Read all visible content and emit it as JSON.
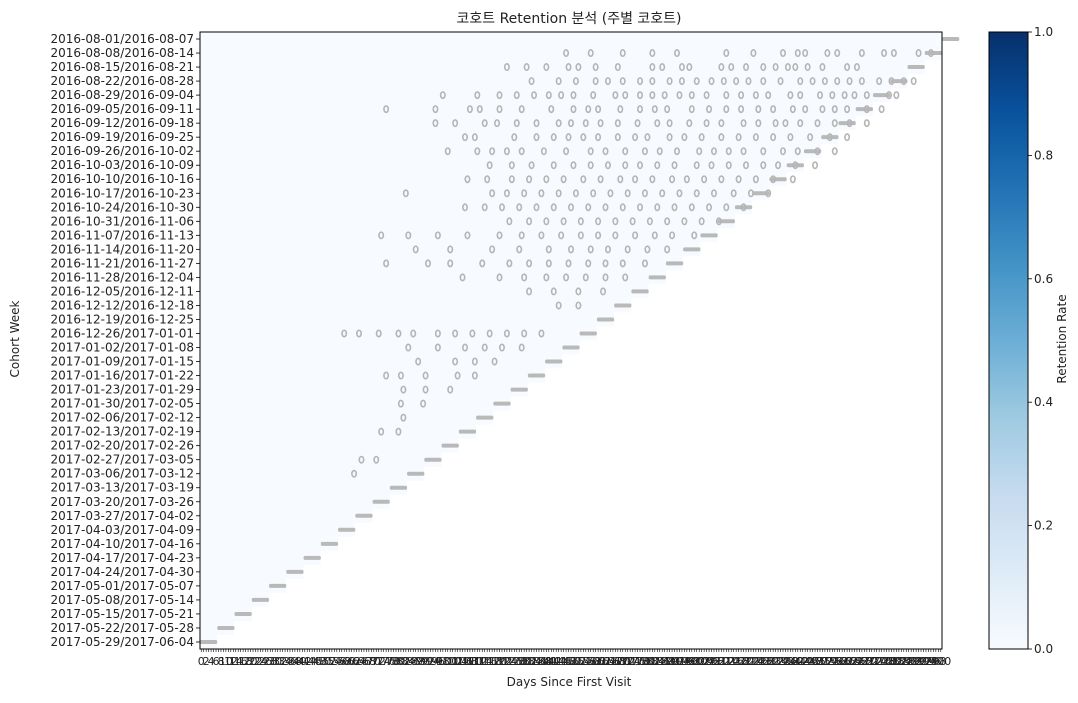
{
  "chart_data": {
    "type": "heatmap",
    "title": "코호트 Retention 분석 (주별 코호트)",
    "xlabel": "Days Since First Visit",
    "ylabel": "Cohort Week",
    "x_range": [
      0,
      300
    ],
    "colorbar": {
      "label": "Retention Rate",
      "range": [
        0,
        1
      ],
      "ticks": [
        "0.0",
        "0.2",
        "0.4",
        "0.6",
        "0.8",
        "1.0"
      ],
      "colors": [
        "#f7fbff",
        "#deebf7",
        "#c6dbef",
        "#9ecae1",
        "#6baed6",
        "#4292c6",
        "#2171b5",
        "#08519c",
        "#08306b"
      ]
    },
    "grid": false,
    "cohorts": [
      "2016-08-01/2016-08-07",
      "2016-08-08/2016-08-14",
      "2016-08-15/2016-08-21",
      "2016-08-22/2016-08-28",
      "2016-08-29/2016-09-04",
      "2016-09-05/2016-09-11",
      "2016-09-12/2016-09-18",
      "2016-09-19/2016-09-25",
      "2016-09-26/2016-10-02",
      "2016-10-03/2016-10-09",
      "2016-10-10/2016-10-16",
      "2016-10-17/2016-10-23",
      "2016-10-24/2016-10-30",
      "2016-10-31/2016-11-06",
      "2016-11-07/2016-11-13",
      "2016-11-14/2016-11-20",
      "2016-11-21/2016-11-27",
      "2016-11-28/2016-12-04",
      "2016-12-05/2016-12-11",
      "2016-12-12/2016-12-18",
      "2016-12-19/2016-12-25",
      "2016-12-26/2017-01-01",
      "2017-01-02/2017-01-08",
      "2017-01-09/2017-01-15",
      "2017-01-16/2017-01-22",
      "2017-01-23/2017-01-29",
      "2017-01-30/2017-02-05",
      "2017-02-06/2017-02-12",
      "2017-02-13/2017-02-19",
      "2017-02-20/2017-02-26",
      "2017-02-27/2017-03-05",
      "2017-03-06/2017-03-12",
      "2017-03-13/2017-03-19",
      "2017-03-20/2017-03-26",
      "2017-03-27/2017-04-02",
      "2017-04-03/2017-04-09",
      "2017-04-10/2017-04-16",
      "2017-04-17/2017-04-23",
      "2017-04-24/2017-04-30",
      "2017-05-01/2017-05-07",
      "2017-05-08/2017-05-14",
      "2017-05-15/2017-05-21",
      "2017-05-22/2017-05-28",
      "2017-05-29/2017-06-04"
    ],
    "annotated_cells": [
      [
        1,
        [
          148,
          158,
          171,
          183,
          193,
          213,
          224,
          236,
          242,
          245,
          254,
          258,
          268,
          277,
          281,
          291,
          296
        ]
      ],
      [
        2,
        [
          124,
          132,
          140,
          149,
          153,
          160,
          169,
          183,
          187,
          195,
          198,
          211,
          215,
          221,
          228,
          233,
          238,
          241,
          246,
          252,
          262,
          266
        ]
      ],
      [
        3,
        [
          134,
          145,
          152,
          160,
          165,
          171,
          178,
          183,
          190,
          195,
          201,
          207,
          212,
          217,
          222,
          228,
          235,
          243,
          248,
          253,
          258,
          263,
          268,
          275,
          280,
          285,
          289
        ]
      ],
      [
        4,
        [
          98,
          112,
          121,
          128,
          135,
          141,
          146,
          151,
          159,
          168,
          172,
          178,
          183,
          188,
          194,
          199,
          205,
          213,
          219,
          225,
          230,
          239,
          243,
          251,
          256,
          261,
          265,
          270,
          279,
          282
        ]
      ],
      [
        5,
        [
          75,
          95,
          109,
          113,
          121,
          130,
          142,
          151,
          157,
          161,
          170,
          178,
          184,
          189,
          199,
          206,
          213,
          219,
          226,
          232,
          240,
          245,
          252,
          257,
          262,
          270,
          276
        ]
      ],
      [
        6,
        [
          95,
          103,
          115,
          120,
          128,
          136,
          145,
          150,
          156,
          162,
          169,
          177,
          185,
          190,
          198,
          205,
          211,
          220,
          226,
          233,
          237,
          243,
          250,
          257,
          263,
          270
        ]
      ],
      [
        7,
        [
          107,
          111,
          127,
          136,
          143,
          149,
          155,
          161,
          169,
          176,
          181,
          190,
          196,
          203,
          211,
          218,
          225,
          232,
          239,
          247,
          255,
          262
        ]
      ],
      [
        8,
        [
          100,
          112,
          118,
          124,
          130,
          139,
          148,
          158,
          164,
          172,
          180,
          186,
          193,
          202,
          208,
          214,
          220,
          228,
          236,
          242,
          250,
          257
        ]
      ],
      [
        9,
        [
          117,
          126,
          134,
          143,
          151,
          158,
          165,
          172,
          178,
          185,
          192,
          201,
          207,
          214,
          221,
          228,
          234,
          241,
          249
        ]
      ],
      [
        10,
        [
          108,
          116,
          126,
          133,
          140,
          147,
          155,
          162,
          170,
          176,
          183,
          191,
          197,
          204,
          211,
          218,
          225,
          232,
          240
        ]
      ],
      [
        11,
        [
          83,
          118,
          124,
          131,
          138,
          145,
          152,
          159,
          166,
          173,
          180,
          187,
          194,
          201,
          208,
          216,
          223,
          230
        ]
      ],
      [
        12,
        [
          107,
          115,
          122,
          129,
          136,
          143,
          150,
          157,
          164,
          171,
          178,
          185,
          192,
          199,
          206,
          213,
          220
        ]
      ],
      [
        13,
        [
          125,
          133,
          140,
          147,
          154,
          161,
          168,
          175,
          182,
          189,
          196,
          203,
          210
        ]
      ],
      [
        14,
        [
          73,
          84,
          96,
          108,
          121,
          130,
          138,
          146,
          154,
          161,
          168,
          176,
          184,
          191,
          200
        ]
      ],
      [
        15,
        [
          87,
          101,
          118,
          129,
          141,
          150,
          158,
          165,
          173,
          181,
          189
        ]
      ],
      [
        16,
        [
          75,
          92,
          101,
          114,
          125,
          133,
          141,
          149,
          157,
          164,
          171,
          180
        ]
      ],
      [
        17,
        [
          106,
          121,
          131,
          140,
          148,
          156,
          164,
          172
        ]
      ],
      [
        18,
        [
          133,
          143,
          153,
          163
        ]
      ],
      [
        19,
        [
          145,
          153
        ]
      ],
      [
        21,
        [
          58,
          64,
          72,
          80,
          86,
          96,
          103,
          110,
          117,
          124,
          131,
          138
        ]
      ],
      [
        22,
        [
          84,
          96,
          107,
          115,
          122,
          130
        ]
      ],
      [
        23,
        [
          88,
          103,
          111,
          119
        ]
      ],
      [
        24,
        [
          75,
          81,
          91,
          104,
          111
        ]
      ],
      [
        25,
        [
          82,
          91,
          101
        ]
      ],
      [
        26,
        [
          81,
          90
        ]
      ],
      [
        27,
        [
          82
        ]
      ],
      [
        28,
        [
          73,
          80
        ]
      ],
      [
        30,
        [
          65,
          71
        ]
      ],
      [
        31,
        [
          62
        ]
      ]
    ]
  }
}
